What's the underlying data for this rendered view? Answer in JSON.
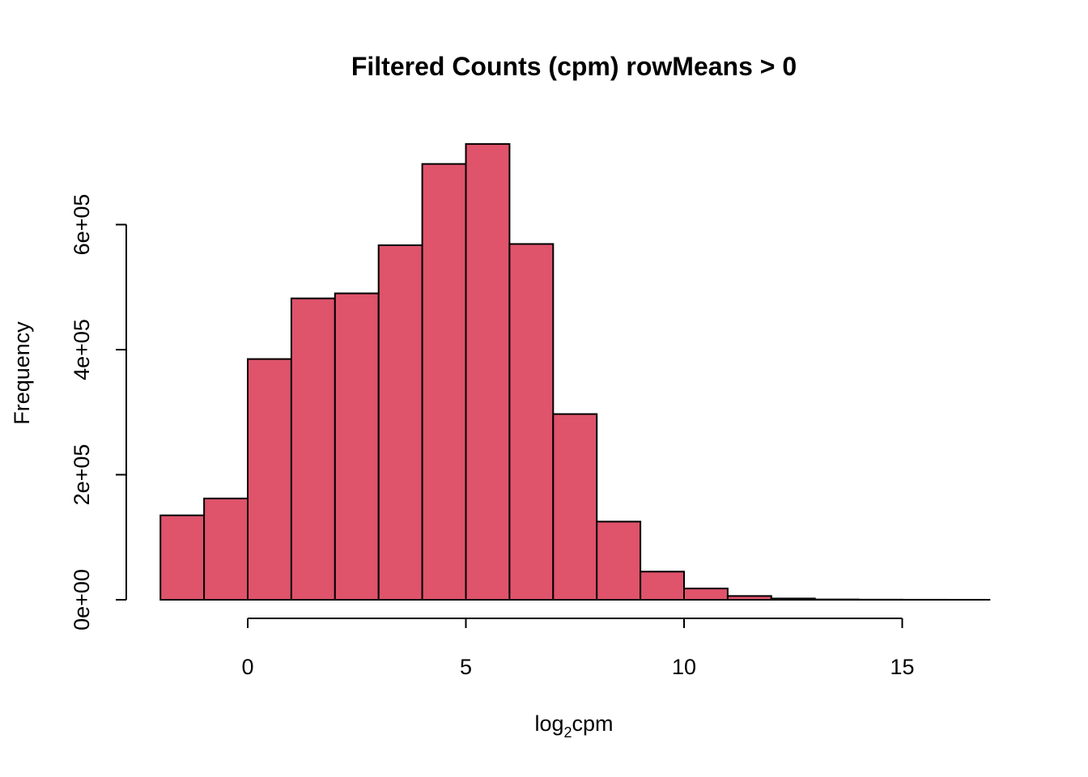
{
  "chart_data": {
    "type": "bar",
    "title": "Filtered Counts (cpm) rowMeans > 0",
    "xlabel": {
      "main": "log",
      "subscript": "2",
      "suffix": "cpm"
    },
    "ylabel": "Frequency",
    "bar_color": "#DF536B",
    "edge_color": "#000000",
    "grid": false,
    "legend": "none",
    "xlim": [
      -2,
      17
    ],
    "ylim": [
      0,
      730000
    ],
    "x_ticks": [
      0,
      5,
      10,
      15
    ],
    "x_tick_labels": [
      "0",
      "5",
      "10",
      "15"
    ],
    "y_ticks": [
      0,
      200000,
      400000,
      600000
    ],
    "y_tick_labels": [
      "0e+00",
      "2e+05",
      "4e+05",
      "6e+05"
    ],
    "bins": [
      {
        "x0": -2,
        "x1": -1,
        "value": 135000
      },
      {
        "x0": -1,
        "x1": 0,
        "value": 162000
      },
      {
        "x0": 0,
        "x1": 1,
        "value": 385000
      },
      {
        "x0": 1,
        "x1": 2,
        "value": 482000
      },
      {
        "x0": 2,
        "x1": 3,
        "value": 490000
      },
      {
        "x0": 3,
        "x1": 4,
        "value": 567000
      },
      {
        "x0": 4,
        "x1": 5,
        "value": 697000
      },
      {
        "x0": 5,
        "x1": 6,
        "value": 729000
      },
      {
        "x0": 6,
        "x1": 7,
        "value": 569000
      },
      {
        "x0": 7,
        "x1": 8,
        "value": 297000
      },
      {
        "x0": 8,
        "x1": 9,
        "value": 125000
      },
      {
        "x0": 9,
        "x1": 10,
        "value": 45000
      },
      {
        "x0": 10,
        "x1": 11,
        "value": 18000
      },
      {
        "x0": 11,
        "x1": 12,
        "value": 6000
      },
      {
        "x0": 12,
        "x1": 13,
        "value": 2000
      },
      {
        "x0": 13,
        "x1": 14,
        "value": 500
      },
      {
        "x0": 14,
        "x1": 15,
        "value": 200
      },
      {
        "x0": 15,
        "x1": 16,
        "value": 80
      },
      {
        "x0": 16,
        "x1": 17,
        "value": 30
      }
    ]
  }
}
